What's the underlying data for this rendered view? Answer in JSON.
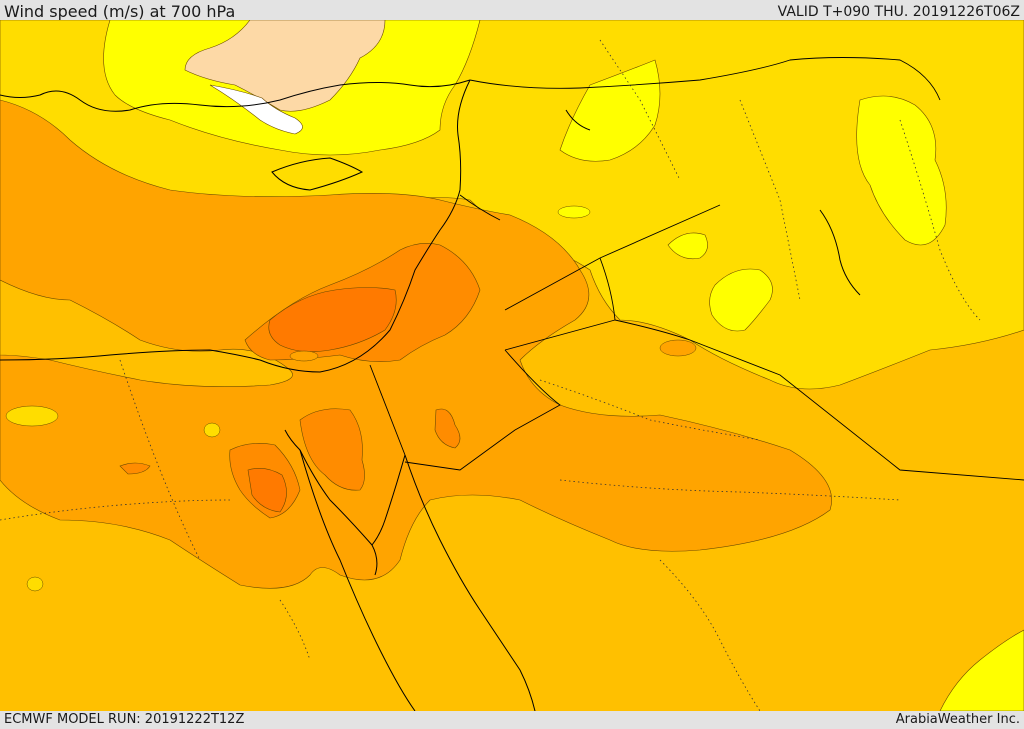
{
  "header": {
    "title": "Wind speed (m/s) at 700 hPa",
    "valid_time": "VALID T+090 THU. 20191226T06Z"
  },
  "footer": {
    "model_run": "ECMWF MODEL RUN: 20191222T12Z",
    "credit": "ArabiaWeather Inc."
  },
  "map": {
    "field": "wind speed",
    "level": "700 hPa",
    "colors": {
      "white": "#ffffff",
      "peach": "#fdd9a6",
      "yellow": "#ffff00",
      "light_gold": "#ffdd00",
      "gold": "#ffc000",
      "light_orange": "#ffa400",
      "orange": "#ff8c00",
      "dark_orange": "#ff7a00",
      "coast": "#000000"
    }
  }
}
